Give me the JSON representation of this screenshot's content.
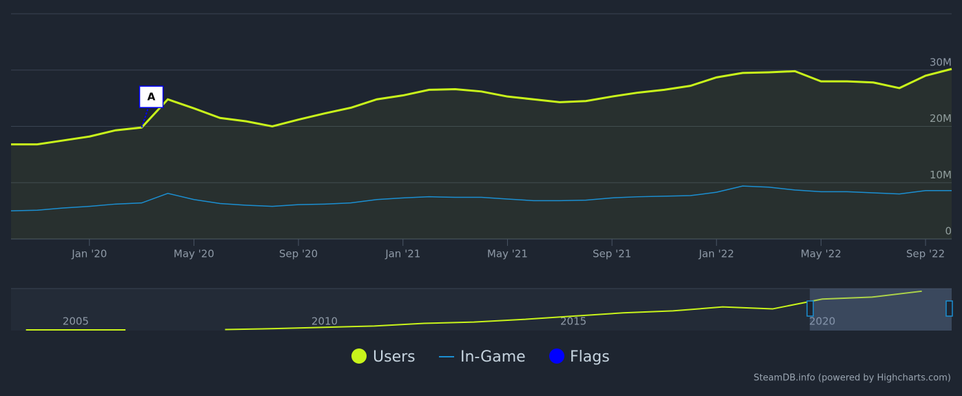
{
  "chart_data": {
    "type": "line",
    "x": [
      "2019-10",
      "2019-11",
      "2019-12",
      "2020-01",
      "2020-02",
      "2020-03",
      "2020-04",
      "2020-05",
      "2020-06",
      "2020-07",
      "2020-08",
      "2020-09",
      "2020-10",
      "2020-11",
      "2020-12",
      "2021-01",
      "2021-02",
      "2021-03",
      "2021-04",
      "2021-05",
      "2021-06",
      "2021-07",
      "2021-08",
      "2021-09",
      "2021-10",
      "2021-11",
      "2021-12",
      "2022-01",
      "2022-02",
      "2022-03",
      "2022-04",
      "2022-05",
      "2022-06",
      "2022-07",
      "2022-08",
      "2022-09",
      "2022-10"
    ],
    "xlim": [
      "2019-10",
      "2022-10"
    ],
    "xticks": [
      {
        "value": "2020-01",
        "label": "Jan '20"
      },
      {
        "value": "2020-05",
        "label": "May '20"
      },
      {
        "value": "2020-09",
        "label": "Sep '20"
      },
      {
        "value": "2021-01",
        "label": "Jan '21"
      },
      {
        "value": "2021-05",
        "label": "May '21"
      },
      {
        "value": "2021-09",
        "label": "Sep '21"
      },
      {
        "value": "2022-01",
        "label": "Jan '22"
      },
      {
        "value": "2022-05",
        "label": "May '22"
      },
      {
        "value": "2022-09",
        "label": "Sep '22"
      }
    ],
    "ylim": [
      0,
      40000000
    ],
    "yticks": [
      {
        "value": 0,
        "label": "0"
      },
      {
        "value": 10000000,
        "label": "10M"
      },
      {
        "value": 20000000,
        "label": "20M"
      },
      {
        "value": 30000000,
        "label": "30M"
      }
    ],
    "grid": true,
    "series": [
      {
        "name": "Users",
        "color": "#c9f41b",
        "values": [
          16800000,
          16800000,
          17500000,
          18200000,
          19300000,
          19800000,
          24800000,
          23200000,
          21500000,
          20900000,
          20000000,
          21200000,
          22300000,
          23300000,
          24800000,
          25500000,
          26500000,
          26600000,
          26200000,
          25300000,
          24800000,
          24300000,
          24500000,
          25300000,
          26000000,
          26500000,
          27200000,
          28700000,
          29500000,
          29600000,
          29800000,
          28000000,
          28000000,
          27800000,
          26800000,
          29000000,
          30200000
        ]
      },
      {
        "name": "In-Game",
        "color": "#1b8fd2",
        "values": [
          5000000,
          5100000,
          5500000,
          5800000,
          6200000,
          6400000,
          8100000,
          7000000,
          6300000,
          6000000,
          5800000,
          6100000,
          6200000,
          6400000,
          7000000,
          7300000,
          7500000,
          7400000,
          7400000,
          7100000,
          6800000,
          6800000,
          6900000,
          7300000,
          7500000,
          7600000,
          7700000,
          8300000,
          9400000,
          9200000,
          8700000,
          8400000,
          8400000,
          8200000,
          8000000,
          8600000,
          8600000
        ]
      }
    ],
    "flags": {
      "name": "Flags",
      "color": "#0000ff",
      "items": [
        {
          "x": "2020-03",
          "label": "A"
        }
      ]
    },
    "navigator": {
      "x": [
        2004,
        2005,
        2006,
        2007,
        2008,
        2009,
        2010,
        2011,
        2012,
        2013,
        2014,
        2015,
        2016,
        2017,
        2018,
        2019,
        2020,
        2021,
        2022
      ],
      "values": [
        500000,
        500000,
        500000,
        null,
        800000,
        1500000,
        2500000,
        3500000,
        5500000,
        6500000,
        8500000,
        11000000,
        13500000,
        15000000,
        18000000,
        16500000,
        24000000,
        25500000,
        30000000
      ],
      "xlim": [
        2003.7,
        2022.6
      ],
      "ylim": [
        0,
        32000000
      ],
      "xticks": [
        2005,
        2010,
        2015,
        2020
      ]
    },
    "credits": "SteamDB.info (powered by Highcharts.com)"
  }
}
